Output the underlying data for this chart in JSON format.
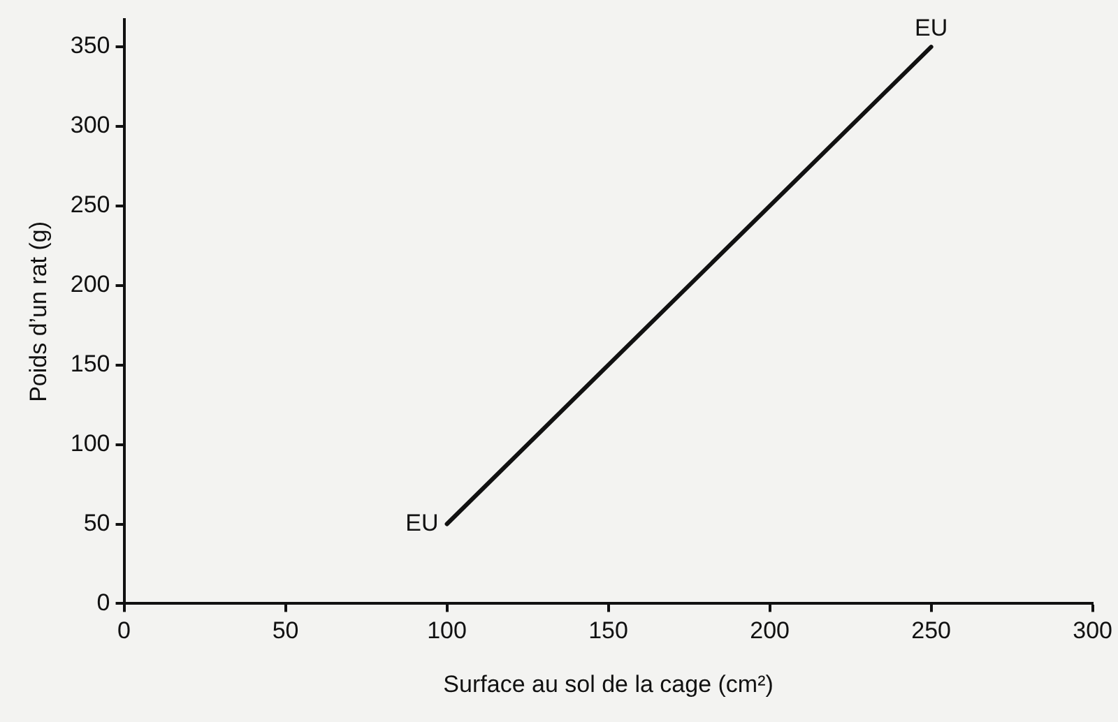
{
  "chart_data": {
    "type": "line",
    "xlabel": "Surface au sol de la cage (cm²)",
    "ylabel": "Poids d’un rat (g)",
    "series": [
      {
        "color": "#111111",
        "x": [
          100,
          250
        ],
        "values": [
          50,
          350
        ]
      }
    ],
    "xlim": [
      0,
      300
    ],
    "xticks": [
      0,
      50,
      100,
      150,
      200,
      250,
      300
    ],
    "ylim": [
      0,
      367
    ],
    "yticks": [
      0,
      50,
      100,
      150,
      200,
      250,
      300,
      350
    ],
    "annotations": [
      {
        "text": "EU",
        "x": 100,
        "y": 50
      },
      {
        "text": "EU",
        "x": 250,
        "y": 350
      }
    ],
    "grid": false,
    "legend": false,
    "marker": "none",
    "line_style": "solid"
  }
}
